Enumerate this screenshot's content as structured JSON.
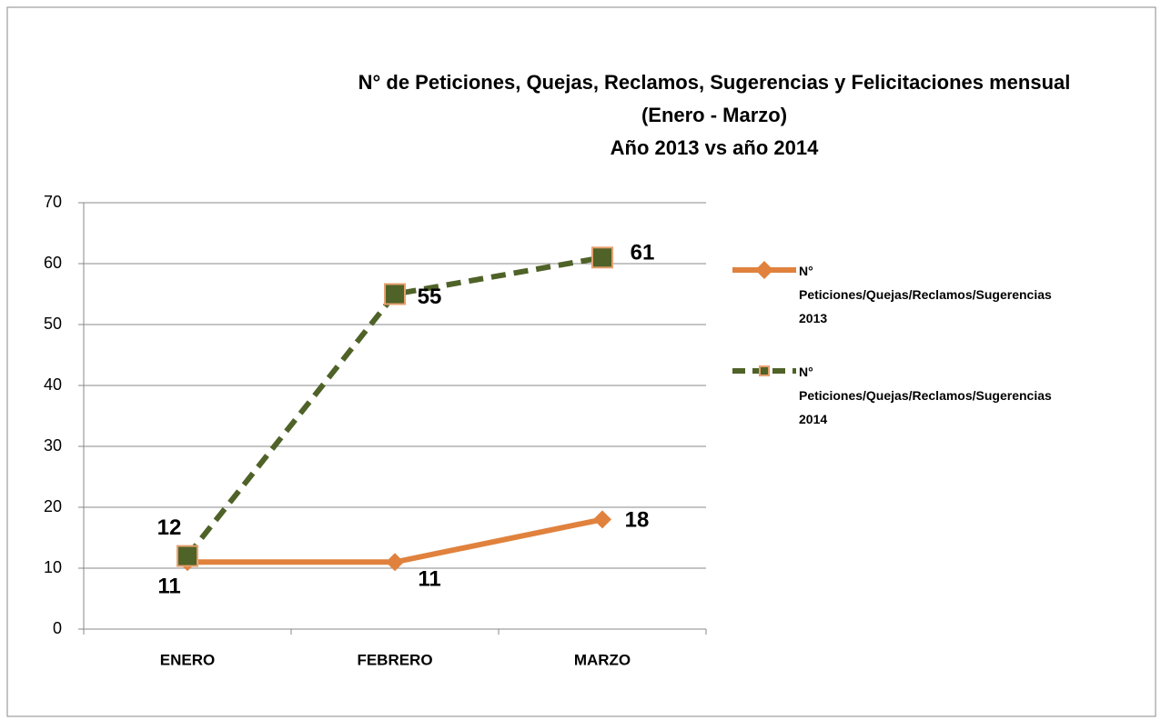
{
  "chart_data": {
    "type": "line",
    "title": [
      "N° de Peticiones, Quejas, Reclamos, Sugerencias  y Felicitaciones mensual",
      "(Enero - Marzo)",
      "Año 2013 vs año 2014"
    ],
    "categories": [
      "ENERO",
      "FEBRERO",
      "MARZO"
    ],
    "series": [
      {
        "name": "N° Peticiones/Quejas/Reclamos/Sugerencias 2013",
        "color": "#e0823d",
        "values": [
          11,
          11,
          18
        ]
      },
      {
        "name": "N° Peticiones/Quejas/Reclamos/Sugerencias 2014",
        "color": "#4f6228",
        "values": [
          12,
          55,
          61
        ]
      }
    ],
    "ylim": [
      0,
      70
    ],
    "yticks": [
      0,
      10,
      20,
      30,
      40,
      50,
      60,
      70
    ],
    "grid": true,
    "legend": "right"
  }
}
